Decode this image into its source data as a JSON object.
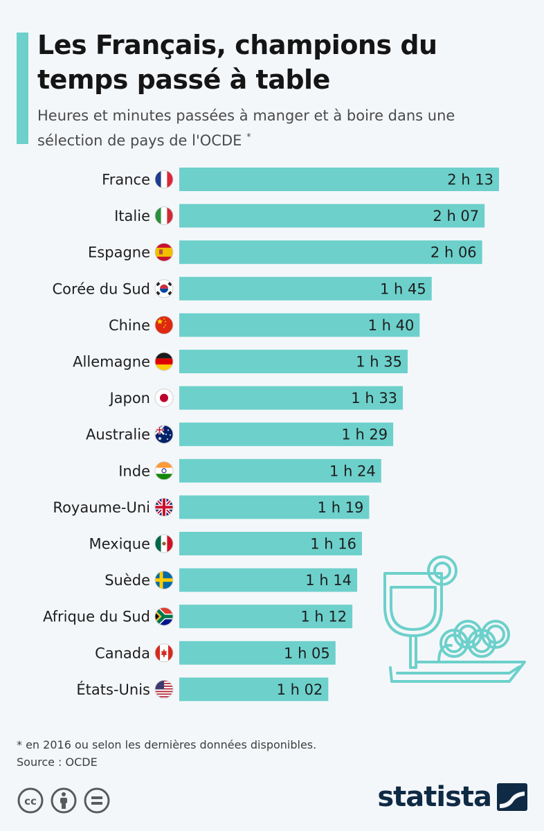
{
  "header": {
    "title": "Les Français, champions du temps passé à table",
    "subtitle": "Heures et minutes passées à manger et à boire dans une sélection de pays de l'OCDE",
    "subtitle_mark": "*"
  },
  "chart_data": {
    "type": "bar",
    "orientation": "horizontal",
    "title": "Les Français, champions du temps passé à table",
    "subtitle": "Heures et minutes passées à manger et à boire dans une sélection de pays de l'OCDE *",
    "unit": "minutes",
    "categories": [
      "France",
      "Italie",
      "Espagne",
      "Corée du Sud",
      "Chine",
      "Allemagne",
      "Japon",
      "Australie",
      "Inde",
      "Royaume-Uni",
      "Mexique",
      "Suède",
      "Afrique du Sud",
      "Canada",
      "États-Unis"
    ],
    "values": [
      133,
      127,
      126,
      105,
      100,
      95,
      93,
      89,
      84,
      79,
      76,
      74,
      72,
      65,
      62
    ],
    "labels": [
      "2 h 13",
      "2 h 07",
      "2 h 06",
      "1 h 45",
      "1 h 40",
      "1 h 35",
      "1 h 33",
      "1 h 29",
      "1 h 24",
      "1 h 19",
      "1 h 16",
      "1 h 14",
      "1 h 12",
      "1 h 05",
      "1 h 02"
    ],
    "flag_icons": [
      "flag-france-icon",
      "flag-italy-icon",
      "flag-spain-icon",
      "flag-south-korea-icon",
      "flag-china-icon",
      "flag-germany-icon",
      "flag-japan-icon",
      "flag-australia-icon",
      "flag-india-icon",
      "flag-uk-icon",
      "flag-mexico-icon",
      "flag-sweden-icon",
      "flag-south-africa-icon",
      "flag-canada-icon",
      "flag-usa-icon"
    ],
    "xlim": [
      0,
      133
    ],
    "grid": false,
    "legend": "none",
    "bar_color": "#6dd0cb"
  },
  "footer": {
    "note": "* en 2016 ou selon les dernières données disponibles.",
    "source": "Source : OCDE",
    "brand": "statista",
    "license_icons": [
      "cc-icon",
      "by-attribution-icon",
      "no-derivatives-icon"
    ]
  },
  "colors": {
    "accent": "#6dd0cb",
    "background": "#f4f7fa",
    "brand": "#0f2a44"
  }
}
